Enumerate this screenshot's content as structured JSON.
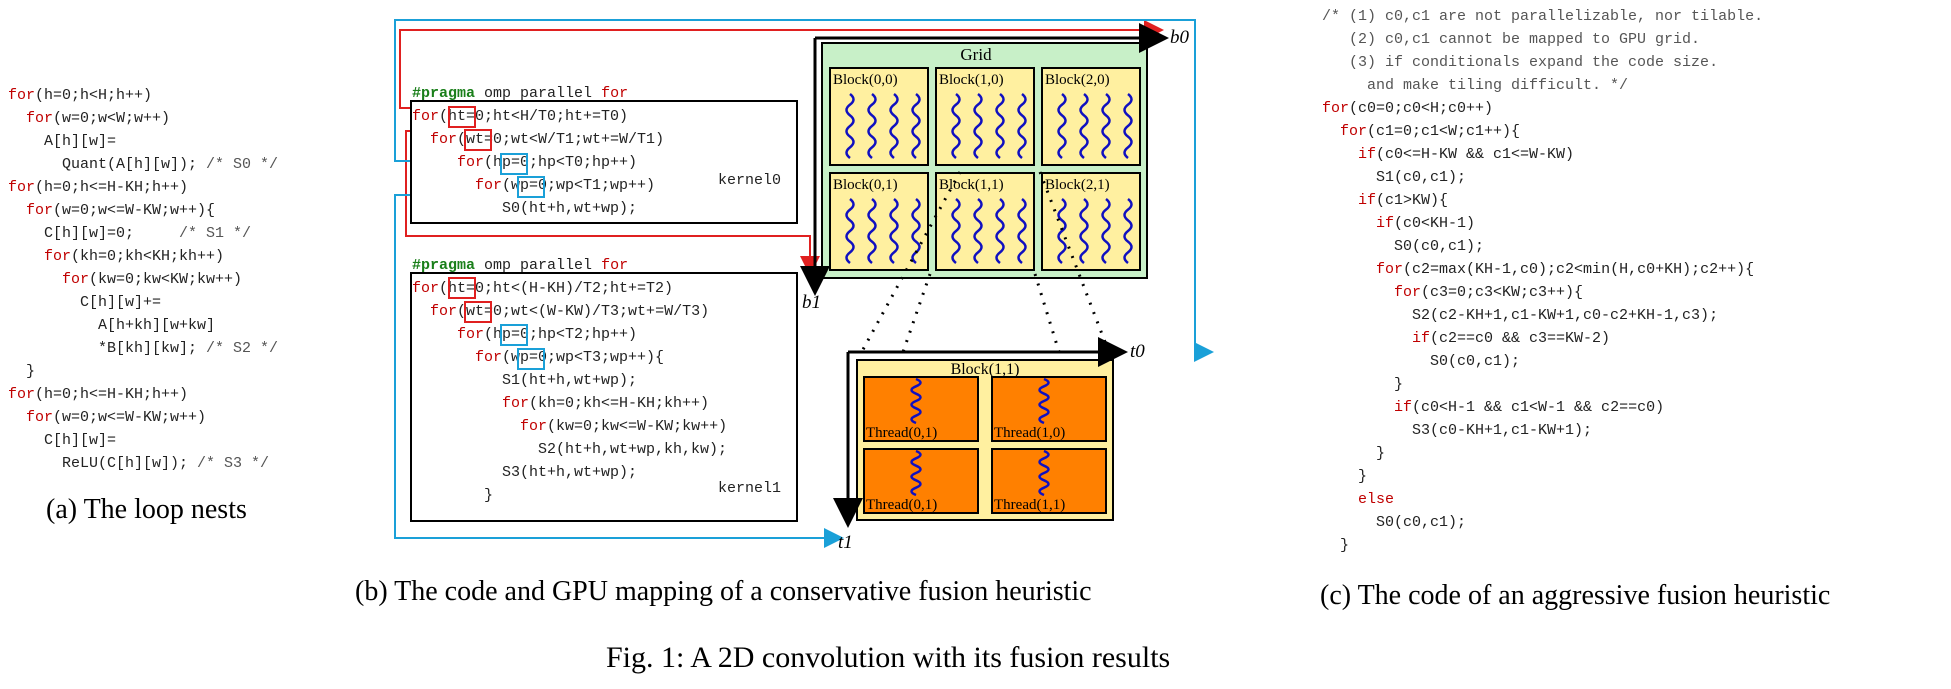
{
  "panel_a": {
    "code_lines": [
      [
        {
          "t": "for",
          "c": "kw"
        },
        {
          "t": "(h=0;h<H;h++)"
        }
      ],
      [
        {
          "t": "  "
        },
        {
          "t": "for",
          "c": "kw"
        },
        {
          "t": "(w=0;w<W;w++)"
        }
      ],
      [
        {
          "t": "    A[h][w]="
        }
      ],
      [
        {
          "t": "      Quant(A[h][w]); "
        },
        {
          "t": "/* S0 */",
          "c": "cm"
        }
      ],
      [
        {
          "t": "for",
          "c": "kw"
        },
        {
          "t": "(h=0;h<=H-KH;h++)"
        }
      ],
      [
        {
          "t": "  "
        },
        {
          "t": "for",
          "c": "kw"
        },
        {
          "t": "(w=0;w<=W-KW;w++){"
        }
      ],
      [
        {
          "t": "    C[h][w]=0;     "
        },
        {
          "t": "/* S1 */",
          "c": "cm"
        }
      ],
      [
        {
          "t": "    "
        },
        {
          "t": "for",
          "c": "kw"
        },
        {
          "t": "(kh=0;kh<KH;kh++)"
        }
      ],
      [
        {
          "t": "      "
        },
        {
          "t": "for",
          "c": "kw"
        },
        {
          "t": "(kw=0;kw<KW;kw++)"
        }
      ],
      [
        {
          "t": "        C[h][w]+="
        }
      ],
      [
        {
          "t": "          A[h+kh][w+kw]"
        }
      ],
      [
        {
          "t": "          *B[kh][kw]; "
        },
        {
          "t": "/* S2 */",
          "c": "cm"
        }
      ],
      [
        {
          "t": "  }"
        }
      ],
      [
        {
          "t": "for",
          "c": "kw"
        },
        {
          "t": "(h=0;h<=H-KH;h++)"
        }
      ],
      [
        {
          "t": "  "
        },
        {
          "t": "for",
          "c": "kw"
        },
        {
          "t": "(w=0;w<=W-KW;w++)"
        }
      ],
      [
        {
          "t": "    C[h][w]="
        }
      ],
      [
        {
          "t": "      ReLU(C[h][w]); "
        },
        {
          "t": "/* S3 */",
          "c": "cm"
        }
      ]
    ],
    "caption": "(a) The loop nests"
  },
  "panel_b": {
    "kernel0_lines": [
      [
        {
          "t": "#",
          "c": "pr"
        },
        {
          "t": "pragma",
          "c": "pr"
        },
        {
          "t": " omp parallel "
        },
        {
          "t": "for",
          "c": "kw"
        }
      ],
      [
        {
          "t": "for",
          "c": "kw"
        },
        {
          "t": "(ht=0;ht<H/T0;ht+=T0)"
        }
      ],
      [
        {
          "t": "  "
        },
        {
          "t": "for",
          "c": "kw"
        },
        {
          "t": "(wt=0;wt<W/T1;wt+=W/T1)"
        }
      ],
      [
        {
          "t": "     "
        },
        {
          "t": "for",
          "c": "kw"
        },
        {
          "t": "(hp=0;hp<T0;hp++)"
        }
      ],
      [
        {
          "t": "       "
        },
        {
          "t": "for",
          "c": "kw"
        },
        {
          "t": "(wp=0;wp<T1;wp++)"
        }
      ],
      [
        {
          "t": "          S0(ht+h,wt+wp);"
        }
      ]
    ],
    "kernel0_label": "kernel0",
    "kernel1_lines": [
      [
        {
          "t": "#",
          "c": "pr"
        },
        {
          "t": "pragma",
          "c": "pr"
        },
        {
          "t": " omp parallel "
        },
        {
          "t": "for",
          "c": "kw"
        }
      ],
      [
        {
          "t": "for",
          "c": "kw"
        },
        {
          "t": "(ht=0;ht<(H-KH)/T2;ht+=T2)"
        }
      ],
      [
        {
          "t": "  "
        },
        {
          "t": "for",
          "c": "kw"
        },
        {
          "t": "(wt=0;wt<(W-KW)/T3;wt+=W/T3)"
        }
      ],
      [
        {
          "t": "     "
        },
        {
          "t": "for",
          "c": "kw"
        },
        {
          "t": "(hp=0;hp<T2;hp++)"
        }
      ],
      [
        {
          "t": "       "
        },
        {
          "t": "for",
          "c": "kw"
        },
        {
          "t": "(wp=0;wp<T3;wp++){"
        }
      ],
      [
        {
          "t": "          S1(ht+h,wt+wp);"
        }
      ],
      [
        {
          "t": "          "
        },
        {
          "t": "for",
          "c": "kw"
        },
        {
          "t": "(kh=0;kh<=H-KH;kh++)"
        }
      ],
      [
        {
          "t": "            "
        },
        {
          "t": "for",
          "c": "kw"
        },
        {
          "t": "(kw=0;kw<=W-KW;kw++)"
        }
      ],
      [
        {
          "t": "              S2(ht+h,wt+wp,kh,kw);"
        }
      ],
      [
        {
          "t": "          S3(ht+h,wt+wp);"
        }
      ],
      [
        {
          "t": "        }"
        }
      ]
    ],
    "kernel1_label": "kernel1",
    "grid_title": "Grid",
    "blocks": [
      "Block(0,0)",
      "Block(1,0)",
      "Block(2,0)",
      "Block(0,1)",
      "Block(1,1)",
      "Block(2,1)"
    ],
    "block_detail_title": "Block(1,1)",
    "threads": [
      "Thread(0,1)",
      "Thread(1,0)",
      "Thread(0,1)",
      "Thread(1,1)"
    ],
    "axis_labels": {
      "b0": "b0",
      "b1": "b1",
      "t0": "t0",
      "t1": "t1"
    },
    "colors": {
      "grid_fill": "#c8f0c8",
      "block_fill": "#fff0a0",
      "thread_fill": "#ff8000",
      "wave": "#1010c0",
      "red": "#e02020",
      "blue": "#1aa0d8"
    },
    "caption": "(b) The code and GPU mapping of a conservative fusion heuristic"
  },
  "panel_c": {
    "code_lines": [
      [
        {
          "t": "/* (1) c0,c1 are not parallelizable, nor tilable.",
          "c": "cm"
        }
      ],
      [
        {
          "t": "   (2) c0,c1 cannot be mapped to GPU grid.",
          "c": "cm"
        }
      ],
      [
        {
          "t": "   (3) if conditionals expand the code size.",
          "c": "cm"
        }
      ],
      [
        {
          "t": "     and make tiling difficult. */",
          "c": "cm"
        }
      ],
      [
        {
          "t": "for",
          "c": "kw"
        },
        {
          "t": "(c0=0;c0<H;c0++)"
        }
      ],
      [
        {
          "t": "  "
        },
        {
          "t": "for",
          "c": "kw"
        },
        {
          "t": "(c1=0;c1<W;c1++){"
        }
      ],
      [
        {
          "t": "    "
        },
        {
          "t": "if",
          "c": "kw"
        },
        {
          "t": "(c0<=H-KW && c1<=W-KW)"
        }
      ],
      [
        {
          "t": "      S1(c0,c1);"
        }
      ],
      [
        {
          "t": "    "
        },
        {
          "t": "if",
          "c": "kw"
        },
        {
          "t": "(c1>KW){"
        }
      ],
      [
        {
          "t": "      "
        },
        {
          "t": "if",
          "c": "kw"
        },
        {
          "t": "(c0<KH-1)"
        }
      ],
      [
        {
          "t": "        S0(c0,c1);"
        }
      ],
      [
        {
          "t": "      "
        },
        {
          "t": "for",
          "c": "kw"
        },
        {
          "t": "(c2=max(KH-1,c0);c2<min(H,c0+KH);c2++){"
        }
      ],
      [
        {
          "t": "        "
        },
        {
          "t": "for",
          "c": "kw"
        },
        {
          "t": "(c3=0;c3<KW;c3++){"
        }
      ],
      [
        {
          "t": "          S2(c2-KH+1,c1-KW+1,c0-c2+KH-1,c3);"
        }
      ],
      [
        {
          "t": "          "
        },
        {
          "t": "if",
          "c": "kw"
        },
        {
          "t": "(c2==c0 && c3==KW-2)"
        }
      ],
      [
        {
          "t": "            S0(c0,c1);"
        }
      ],
      [
        {
          "t": "        }"
        }
      ],
      [
        {
          "t": "        "
        },
        {
          "t": "if",
          "c": "kw"
        },
        {
          "t": "(c0<H-1 && c1<W-1 && c2==c0)"
        }
      ],
      [
        {
          "t": "          S3(c0-KH+1,c1-KW+1);"
        }
      ],
      [
        {
          "t": "      }"
        }
      ],
      [
        {
          "t": "    }"
        }
      ],
      [
        {
          "t": "    "
        },
        {
          "t": "else",
          "c": "kw"
        }
      ],
      [
        {
          "t": "      S0(c0,c1);"
        }
      ],
      [
        {
          "t": "  }"
        }
      ]
    ],
    "caption": "(c) The code of an aggressive fusion heuristic"
  },
  "figure_caption": "Fig. 1: A 2D convolution with its fusion results"
}
